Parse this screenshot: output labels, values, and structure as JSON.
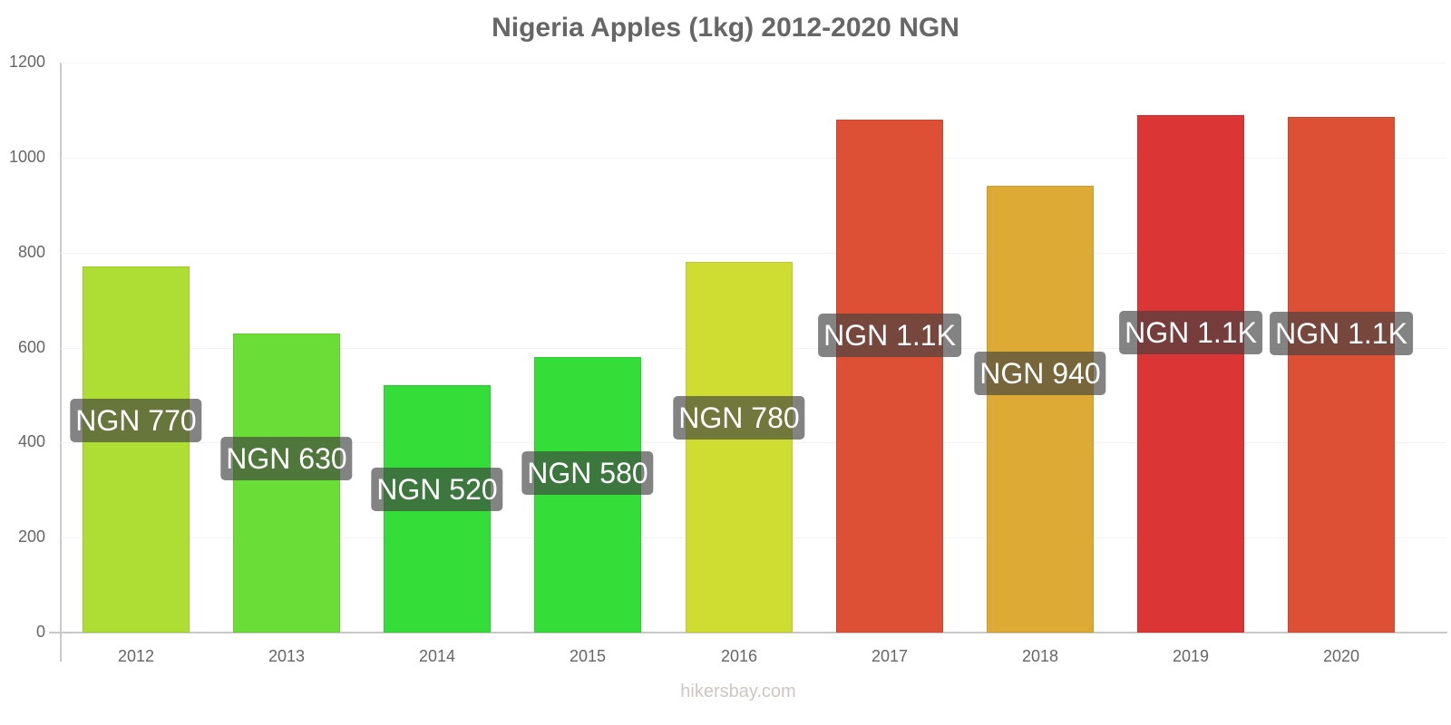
{
  "chart_data": {
    "type": "bar",
    "title": "Nigeria Apples (1kg) 2012-2020 NGN",
    "xlabel": "",
    "ylabel": "",
    "ylim": [
      0,
      1200
    ],
    "yticks": [
      0,
      200,
      400,
      600,
      800,
      1000,
      1200
    ],
    "grid": true,
    "legend": null,
    "categories": [
      "2012",
      "2013",
      "2014",
      "2015",
      "2016",
      "2017",
      "2018",
      "2019",
      "2020"
    ],
    "values": [
      770,
      630,
      520,
      580,
      780,
      1080,
      940,
      1090,
      1085
    ],
    "data_labels": [
      "NGN 770",
      "NGN 630",
      "NGN 520",
      "NGN 580",
      "NGN 780",
      "NGN 1.1K",
      "NGN 940",
      "NGN 1.1K",
      "NGN 1.1K"
    ],
    "colors": [
      "#aedd33",
      "#6add36",
      "#35dd39",
      "#35dd39",
      "#cfdd33",
      "#dd5035",
      "#ddaa35",
      "#dc3535",
      "#dd5035"
    ]
  },
  "watermark": "hikersbay.com"
}
